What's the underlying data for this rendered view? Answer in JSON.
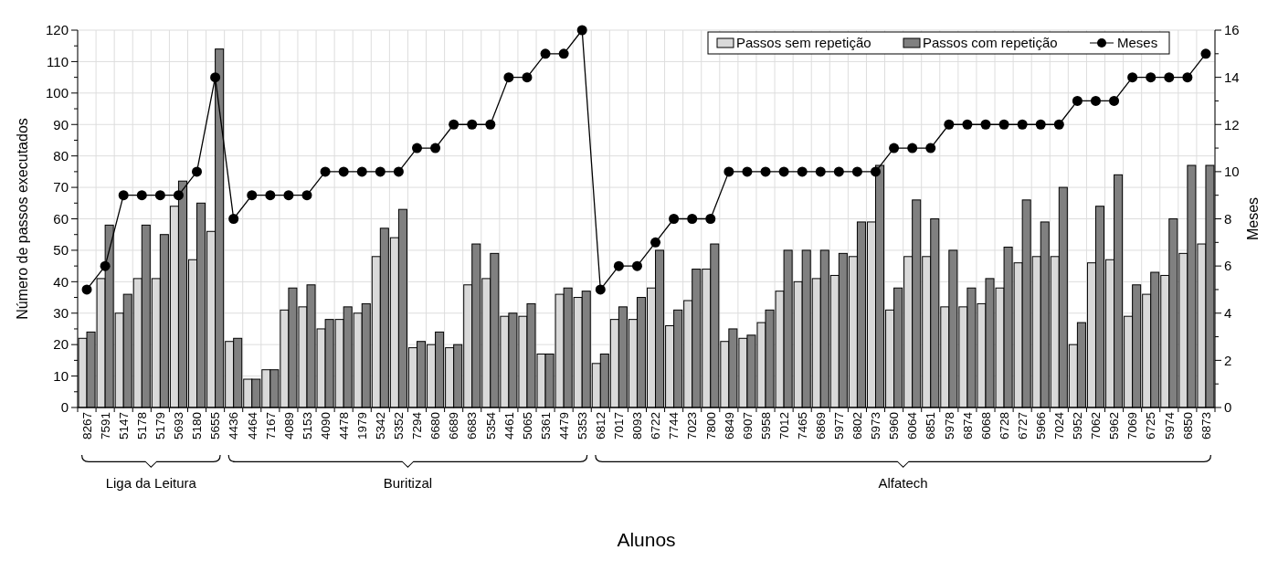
{
  "chart_data": {
    "type": "bar",
    "xlabel": "Alunos",
    "ylabel": "Número de passos executados",
    "y2label": "Meses",
    "categories": [
      "8267",
      "7591",
      "5147",
      "5178",
      "5179",
      "5693",
      "5180",
      "5655",
      "4436",
      "4464",
      "7167",
      "4089",
      "5153",
      "4090",
      "4478",
      "1979",
      "5342",
      "5352",
      "7294",
      "6680",
      "6689",
      "6683",
      "5354",
      "4461",
      "5065",
      "5361",
      "4479",
      "5353",
      "6812",
      "7017",
      "8093",
      "6722",
      "7744",
      "7023",
      "7800",
      "6849",
      "6907",
      "5958",
      "7012",
      "7465",
      "6869",
      "5977",
      "6802",
      "5973",
      "5960",
      "6064",
      "6851",
      "5978",
      "6874",
      "6068",
      "6728",
      "6727",
      "5966",
      "7024",
      "5952",
      "7062",
      "5962",
      "7069",
      "6725",
      "5974",
      "6850",
      "6873"
    ],
    "series": [
      {
        "name": "Passos sem repetição",
        "color": "#d9d9d9",
        "values": [
          22,
          41,
          30,
          41,
          41,
          64,
          47,
          56,
          21,
          9,
          12,
          31,
          32,
          25,
          28,
          30,
          48,
          54,
          19,
          20,
          19,
          39,
          41,
          29,
          29,
          17,
          36,
          35,
          14,
          28,
          28,
          38,
          26,
          34,
          44,
          21,
          22,
          27,
          37,
          40,
          41,
          42,
          48,
          59,
          31,
          48,
          48,
          32,
          32,
          33,
          38,
          46,
          48,
          48,
          20,
          46,
          47,
          29,
          36,
          42,
          49,
          52
        ]
      },
      {
        "name": "Passos com repetição",
        "color": "#808080",
        "values": [
          24,
          58,
          36,
          58,
          55,
          72,
          65,
          114,
          22,
          9,
          12,
          38,
          39,
          28,
          32,
          33,
          57,
          63,
          21,
          24,
          20,
          52,
          49,
          30,
          33,
          17,
          38,
          37,
          17,
          32,
          35,
          50,
          31,
          44,
          52,
          25,
          23,
          31,
          50,
          50,
          50,
          49,
          59,
          77,
          38,
          66,
          60,
          50,
          38,
          41,
          51,
          66,
          59,
          70,
          27,
          64,
          74,
          39,
          43,
          60,
          77,
          77
        ]
      },
      {
        "name": "Meses",
        "type": "line",
        "axis": "y2",
        "color": "#000000",
        "marker": "circle",
        "values": [
          5,
          6,
          9,
          9,
          9,
          9,
          10,
          14,
          8,
          9,
          9,
          9,
          9,
          10,
          10,
          10,
          10,
          10,
          11,
          11,
          12,
          12,
          12,
          14,
          14,
          15,
          15,
          16,
          5,
          6,
          6,
          7,
          8,
          8,
          8,
          10,
          10,
          10,
          10,
          10,
          10,
          10,
          10,
          10,
          11,
          11,
          11,
          12,
          12,
          12,
          12,
          12,
          12,
          12,
          13,
          13,
          13,
          14,
          14,
          14,
          14,
          15
        ]
      }
    ],
    "ylim": [
      0,
      120
    ],
    "yticks": [
      0,
      {
        "value": 5,
        "label": null
      },
      10,
      {
        "value": 15,
        "label": null
      },
      20,
      {
        "value": 25,
        "label": null
      },
      30,
      {
        "value": 35,
        "label": null
      },
      40,
      {
        "value": 45,
        "label": null
      },
      50,
      {
        "value": 55,
        "label": null
      },
      60,
      {
        "value": 65,
        "label": null
      },
      70,
      {
        "value": 75,
        "label": null
      },
      80,
      {
        "value": 85,
        "label": null
      },
      90,
      {
        "value": 95,
        "label": null
      },
      100,
      {
        "value": 105,
        "label": null
      },
      110,
      {
        "value": 115,
        "label": null
      },
      120
    ],
    "y2lim": [
      0,
      16
    ],
    "y2ticks": [
      0,
      {
        "value": 1,
        "label": null
      },
      2,
      {
        "value": 3,
        "label": null
      },
      4,
      {
        "value": 5,
        "label": null
      },
      6,
      {
        "value": 7,
        "label": null
      },
      8,
      {
        "value": 9,
        "label": null
      },
      10,
      {
        "value": 11,
        "label": null
      },
      12,
      {
        "value": 13,
        "label": null
      },
      14,
      {
        "value": 15,
        "label": null
      },
      16
    ],
    "grid": true,
    "legend": "top right",
    "annotations": [
      "Liga da Leitura",
      "Buritizal",
      "Alfatech"
    ]
  }
}
